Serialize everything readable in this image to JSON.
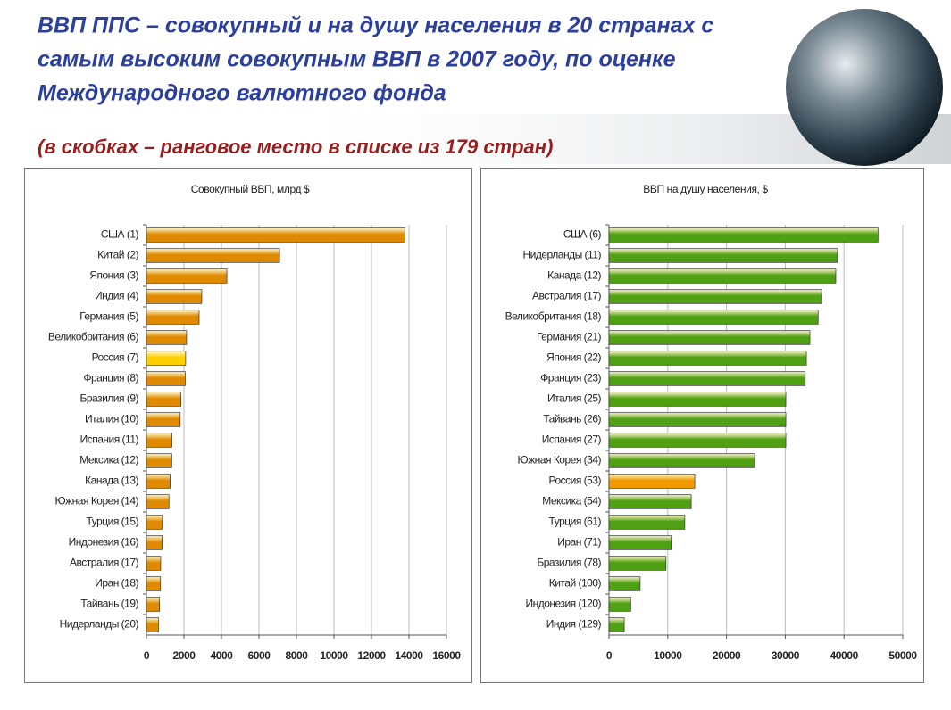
{
  "title": [
    "ВВП ППС – совокупный и на душу населения в 20 странах с",
    "самым высоким  совокупным ВВП в 2007 году, по оценке",
    "Международного валютного фонда"
  ],
  "subtitle": "(в скобках – ранговое место в списке из 179 стран)",
  "chart_data": [
    {
      "type": "barh",
      "title": "Совокупный ВВП, млрд $",
      "categories": [
        "США (1)",
        "Китай (2)",
        "Япония (3)",
        "Индия (4)",
        "Германия (5)",
        "Великобритания (6)",
        "Россия (7)",
        "Франция (8)",
        "Бразилия (9)",
        "Италия (10)",
        "Испания (11)",
        "Мексика (12)",
        "Канада (13)",
        "Южная Корея (14)",
        "Турция (15)",
        "Индонезия (16)",
        "Австралия (17)",
        "Иран (18)",
        "Тайвань (19)",
        "Нидерланды (20)"
      ],
      "values": [
        13780,
        7100,
        4290,
        2950,
        2810,
        2140,
        2090,
        2070,
        1840,
        1800,
        1360,
        1350,
        1270,
        1200,
        850,
        840,
        760,
        750,
        700,
        640
      ],
      "colors": [
        "#e08a00",
        "#e08a00",
        "#e08a00",
        "#e08a00",
        "#e08a00",
        "#e08a00",
        "#ffd000",
        "#e08a00",
        "#e08a00",
        "#e08a00",
        "#e08a00",
        "#e08a00",
        "#e08a00",
        "#e08a00",
        "#e08a00",
        "#e08a00",
        "#e08a00",
        "#e08a00",
        "#e08a00",
        "#e08a00"
      ],
      "xlim": [
        0,
        16000
      ],
      "xticks": [
        0,
        2000,
        4000,
        6000,
        8000,
        10000,
        12000,
        14000,
        16000
      ],
      "grid": true
    },
    {
      "type": "barh",
      "title": "ВВП на душу населения, $",
      "categories": [
        "США (6)",
        "Нидерланды (11)",
        "Канада (12)",
        "Австралия (17)",
        "Великобритания (18)",
        "Германия (21)",
        "Япония (22)",
        "Франция (23)",
        "Италия (25)",
        "Тайвань (26)",
        "Испания (27)",
        "Южная Корея (34)",
        "Россия (53)",
        "Мексика (54)",
        "Турция (61)",
        "Иран (71)",
        "Бразилия (78)",
        "Китай (100)",
        "Индонезия (120)",
        "Индия (129)"
      ],
      "values": [
        45800,
        38900,
        38600,
        36200,
        35600,
        34200,
        33600,
        33400,
        30100,
        30100,
        30100,
        24800,
        14600,
        14000,
        12900,
        10600,
        9700,
        5300,
        3700,
        2600
      ],
      "colors": [
        "#4fa012",
        "#4fa012",
        "#4fa012",
        "#4fa012",
        "#4fa012",
        "#4fa012",
        "#4fa012",
        "#4fa012",
        "#4fa012",
        "#4fa012",
        "#4fa012",
        "#4fa012",
        "#f29a00",
        "#4fa012",
        "#4fa012",
        "#4fa012",
        "#4fa012",
        "#4fa012",
        "#4fa012",
        "#4fa012"
      ],
      "xlim": [
        0,
        50000
      ],
      "xticks": [
        0,
        10000,
        20000,
        30000,
        40000,
        50000
      ],
      "grid": true
    }
  ]
}
